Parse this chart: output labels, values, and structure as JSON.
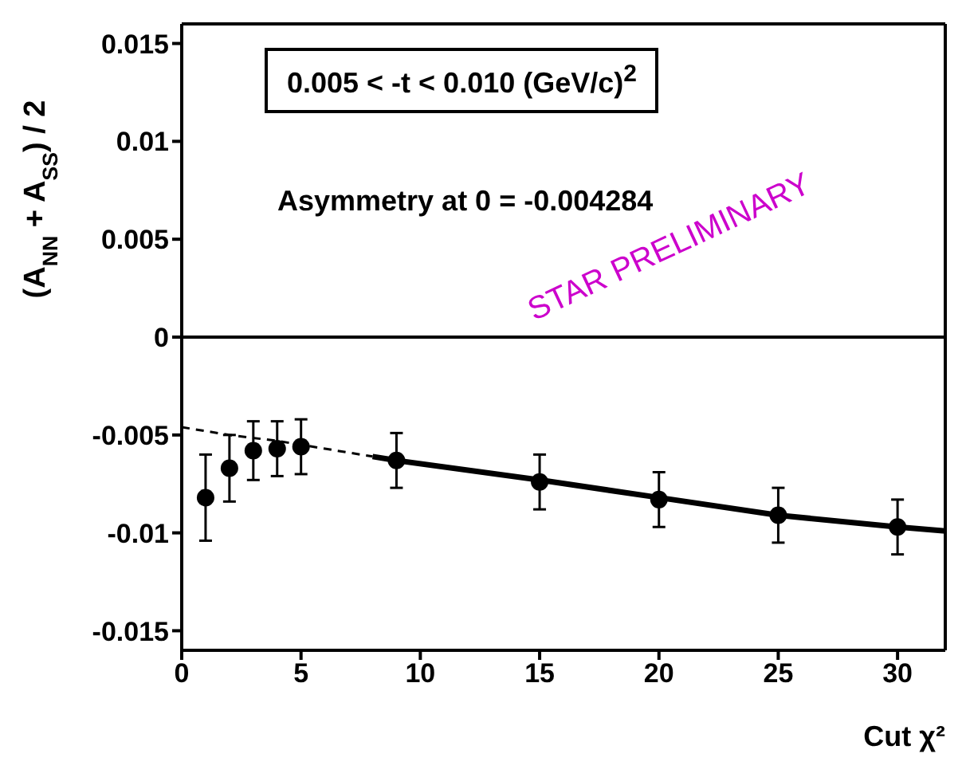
{
  "chart_data": {
    "type": "scatter",
    "ylabel": "(A$_{NN}$ + A$_{SS}$) / 2",
    "xlabel": "Cut χ²",
    "annotations": [
      "0.005 < -t < 0.010 (GeV/c)$^{2}$",
      "Asymmetry at 0 = -0.004284",
      "STAR PRELIMINARY"
    ],
    "x": [
      1,
      2,
      3,
      4,
      5,
      9,
      15,
      20,
      25,
      30
    ],
    "series": [
      {
        "color": "#000000",
        "marker": "circle",
        "values": [
          -0.0082,
          -0.0067,
          -0.0058,
          -0.0057,
          -0.0056,
          -0.0063,
          -0.0074,
          -0.0083,
          -0.0091,
          -0.0097
        ],
        "errors": [
          0.0022,
          0.0017,
          0.0015,
          0.0014,
          0.0014,
          0.0014,
          0.0014,
          0.0014,
          0.0014,
          0.0014
        ]
      },
      {
        "type": "line",
        "color": "#000000",
        "line_style": "dashed",
        "x": [
          0,
          2,
          4,
          6,
          8
        ],
        "values": [
          -0.0046,
          -0.005,
          -0.0053,
          -0.0057,
          -0.0061
        ]
      },
      {
        "type": "line",
        "color": "#000000",
        "line_style": "solid",
        "x": [
          8,
          9,
          15,
          20,
          25,
          30,
          32
        ],
        "values": [
          -0.0061,
          -0.0063,
          -0.0073,
          -0.0082,
          -0.0091,
          -0.0097,
          -0.0099
        ]
      }
    ],
    "xlim": [
      0,
      32
    ],
    "xticks": [
      0,
      5,
      10,
      15,
      20,
      25,
      30
    ],
    "ylim": [
      -0.016,
      0.016
    ],
    "yticks": [
      -0.015,
      -0.01,
      -0.005,
      0,
      0.005,
      0.01,
      0.015
    ],
    "ref_lines": [
      {
        "axis": "y",
        "value": 0,
        "color": "#000000"
      }
    ],
    "grid": false,
    "legend": false
  }
}
